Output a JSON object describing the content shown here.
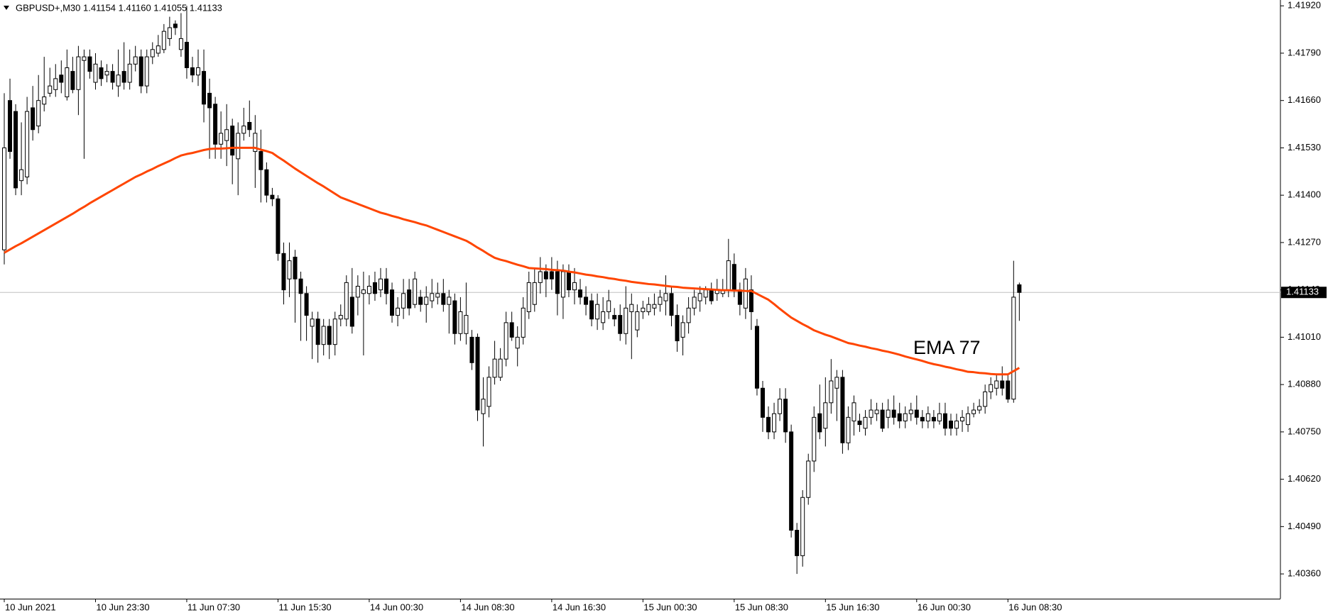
{
  "chart_data": {
    "type": "candlestick",
    "title": "GBPUSD+,M30  1.41154 1.41160 1.41055 1.41133",
    "categories": [
      "10 Jun 2021",
      null,
      null,
      null,
      null,
      null,
      null,
      null,
      null,
      null,
      null,
      null,
      null,
      null,
      null,
      null,
      "10 Jun 23:30",
      null,
      null,
      null,
      null,
      null,
      null,
      null,
      null,
      null,
      null,
      null,
      null,
      null,
      null,
      null,
      "11 Jun 07:30",
      null,
      null,
      null,
      null,
      null,
      null,
      null,
      null,
      null,
      null,
      null,
      null,
      null,
      null,
      null,
      "11 Jun 15:30",
      null,
      null,
      null,
      null,
      null,
      null,
      null,
      null,
      null,
      null,
      null,
      null,
      null,
      null,
      null,
      "14 Jun 00:30",
      null,
      null,
      null,
      null,
      null,
      null,
      null,
      null,
      null,
      null,
      null,
      null,
      null,
      null,
      null,
      "14 Jun 08:30",
      null,
      null,
      null,
      null,
      null,
      null,
      null,
      null,
      null,
      null,
      null,
      null,
      null,
      null,
      null,
      "14 Jun 16:30",
      null,
      null,
      null,
      null,
      null,
      null,
      null,
      null,
      null,
      null,
      null,
      null,
      null,
      null,
      null,
      "15 Jun 00:30",
      null,
      null,
      null,
      null,
      null,
      null,
      null,
      null,
      null,
      null,
      null,
      null,
      null,
      null,
      null,
      "15 Jun 08:30",
      null,
      null,
      null,
      null,
      null,
      null,
      null,
      null,
      null,
      null,
      null,
      null,
      null,
      null,
      null,
      "15 Jun 16:30",
      null,
      null,
      null,
      null,
      null,
      null,
      null,
      null,
      null,
      null,
      null,
      null,
      null,
      null,
      null,
      "16 Jun 00:30",
      null,
      null,
      null,
      null,
      null,
      null,
      null,
      null,
      null,
      null,
      null,
      null,
      null,
      null,
      null,
      "16 Jun 08:30",
      null,
      null
    ],
    "open": [
      1.4125,
      1.4166,
      1.4163,
      1.4144,
      1.4145,
      1.4164,
      1.4159,
      1.4165,
      1.4168,
      1.4169,
      1.4173,
      1.4167,
      1.4174,
      1.4169,
      1.4177,
      1.4178,
      1.4171,
      1.4175,
      1.4173,
      1.4174,
      1.417,
      1.4174,
      1.4171,
      1.4176,
      1.4178,
      1.417,
      1.4178,
      1.4179,
      1.418,
      1.4183,
      1.4187,
      1.418,
      1.4182,
      1.4175,
      1.4173,
      1.4174,
      1.4168,
      1.4165,
      1.4154,
      1.4155,
      1.4159,
      1.415,
      1.4157,
      1.416,
      1.4152,
      1.4152,
      1.4147,
      1.414,
      1.4139,
      1.4124,
      1.4117,
      1.4123,
      1.4117,
      1.4113,
      1.4104,
      1.4106,
      1.4099,
      1.4104,
      1.4099,
      1.4106,
      1.4106,
      1.4112,
      1.4112,
      1.4113,
      1.4113,
      1.4116,
      1.4114,
      1.4117,
      1.4114,
      1.4107,
      1.4109,
      1.4114,
      1.411,
      1.4112,
      1.411,
      1.4111,
      1.4112,
      1.4113,
      1.411,
      1.4111,
      1.4102,
      1.4102,
      1.4101,
      1.4101,
      1.408,
      1.4082,
      1.409,
      1.409,
      1.4095,
      1.4105,
      1.4098,
      1.4101,
      1.4108,
      1.411,
      1.4116,
      1.4119,
      1.4119,
      1.4119,
      1.4112,
      1.4119,
      1.4114,
      1.4114,
      1.4112,
      1.4111,
      1.4106,
      1.4105,
      1.4108,
      1.4107,
      1.4107,
      1.4102,
      1.4108,
      1.4103,
      1.4108,
      1.4108,
      1.4109,
      1.411,
      1.4111,
      1.4113,
      1.4107,
      1.4101,
      1.4105,
      1.4109,
      1.4111,
      1.4112,
      1.4114,
      1.4113,
      1.4113,
      1.4114,
      1.4121,
      1.4114,
      1.4109,
      1.4114,
      1.4104,
      1.4087,
      1.4079,
      1.4075,
      1.408,
      1.4084,
      1.4075,
      1.4048,
      1.4041,
      1.4057,
      1.4067,
      1.408,
      1.4076,
      1.4083,
      1.4087,
      1.409,
      1.4072,
      1.4078,
      1.4078,
      1.4076,
      1.4079,
      1.408,
      1.4081,
      1.4079,
      1.4081,
      1.408,
      1.4078,
      1.408,
      1.4081,
      1.4079,
      1.4078,
      1.4079,
      1.4078,
      1.408,
      1.4078,
      1.4076,
      1.4078,
      1.4077,
      1.408,
      1.4081,
      1.4082,
      1.4086,
      1.4087,
      1.4089,
      1.4089,
      1.4084,
      1.41154
    ],
    "high": [
      1.4168,
      1.4172,
      1.4165,
      1.416,
      1.4167,
      1.417,
      1.4173,
      1.4178,
      1.4175,
      1.4176,
      1.4177,
      1.418,
      1.4178,
      1.4181,
      1.418,
      1.418,
      1.4179,
      1.4177,
      1.4176,
      1.4176,
      1.418,
      1.4182,
      1.418,
      1.4181,
      1.418,
      1.418,
      1.4182,
      1.4184,
      1.4187,
      1.4189,
      1.4188,
      1.419,
      1.4192,
      1.4178,
      1.418,
      1.418,
      1.4172,
      1.4167,
      1.4163,
      1.4165,
      1.4161,
      1.416,
      1.4164,
      1.4166,
      1.4162,
      1.4158,
      1.4149,
      1.4142,
      1.414,
      1.4127,
      1.4127,
      1.4125,
      1.4119,
      1.4115,
      1.4108,
      1.4108,
      1.4106,
      1.4106,
      1.4108,
      1.411,
      1.4118,
      1.412,
      1.4118,
      1.4119,
      1.4118,
      1.4119,
      1.412,
      1.412,
      1.4116,
      1.4112,
      1.4117,
      1.4117,
      1.4119,
      1.4114,
      1.4115,
      1.4117,
      1.4116,
      1.4117,
      1.4114,
      1.4113,
      1.4112,
      1.4116,
      1.4103,
      1.4102,
      1.409,
      1.4093,
      1.41,
      1.4098,
      1.4108,
      1.4108,
      1.4104,
      1.4112,
      1.4119,
      1.412,
      1.4123,
      1.4121,
      1.4123,
      1.4122,
      1.4121,
      1.4121,
      1.412,
      1.4117,
      1.4115,
      1.4113,
      1.4113,
      1.4112,
      1.4114,
      1.4109,
      1.411,
      1.4115,
      1.4113,
      1.411,
      1.4111,
      1.4112,
      1.4113,
      1.4114,
      1.4118,
      1.4115,
      1.411,
      1.4107,
      1.4112,
      1.4114,
      1.4115,
      1.4115,
      1.4116,
      1.4117,
      1.4117,
      1.4128,
      1.4124,
      1.4116,
      1.412,
      1.4118,
      1.4106,
      1.4089,
      1.4082,
      1.4083,
      1.4087,
      1.4087,
      1.4077,
      1.405,
      1.4059,
      1.4069,
      1.4082,
      1.4088,
      1.409,
      1.4095,
      1.4092,
      1.4092,
      1.4082,
      1.4085,
      1.408,
      1.4081,
      1.4084,
      1.4083,
      1.4083,
      1.4084,
      1.4085,
      1.4083,
      1.4082,
      1.4083,
      1.4085,
      1.4081,
      1.4082,
      1.4081,
      1.4083,
      1.4083,
      1.408,
      1.408,
      1.4081,
      1.4082,
      1.4083,
      1.4084,
      1.4088,
      1.409,
      1.4091,
      1.4093,
      1.4091,
      1.4122,
      1.4116
    ],
    "low": [
      1.4121,
      1.415,
      1.414,
      1.414,
      1.4143,
      1.4155,
      1.4157,
      1.4163,
      1.4167,
      1.4167,
      1.4168,
      1.4166,
      1.4168,
      1.4162,
      1.415,
      1.4172,
      1.4169,
      1.417,
      1.4171,
      1.4169,
      1.4167,
      1.4169,
      1.4169,
      1.4174,
      1.4168,
      1.4168,
      1.4176,
      1.4178,
      1.4179,
      1.4181,
      1.4184,
      1.4178,
      1.4172,
      1.4171,
      1.417,
      1.416,
      1.415,
      1.415,
      1.415,
      1.4148,
      1.4143,
      1.414,
      1.4155,
      1.4156,
      1.4142,
      1.4138,
      1.4138,
      1.4137,
      1.4122,
      1.411,
      1.4112,
      1.4105,
      1.41,
      1.41,
      1.4095,
      1.4094,
      1.4096,
      1.4095,
      1.4096,
      1.4104,
      1.4104,
      1.4102,
      1.4107,
      1.4096,
      1.411,
      1.4111,
      1.4112,
      1.411,
      1.4105,
      1.4104,
      1.4106,
      1.4107,
      1.4109,
      1.4108,
      1.4105,
      1.4109,
      1.411,
      1.4108,
      1.4102,
      1.4099,
      1.41,
      1.4099,
      1.4092,
      1.4078,
      1.4071,
      1.4079,
      1.4088,
      1.4089,
      1.4093,
      1.41,
      1.4093,
      1.4099,
      1.4106,
      1.4108,
      1.4113,
      1.4112,
      1.4114,
      1.4107,
      1.4106,
      1.4112,
      1.411,
      1.411,
      1.4107,
      1.4104,
      1.4103,
      1.4103,
      1.4106,
      1.4104,
      1.41,
      1.4099,
      1.4095,
      1.4101,
      1.4106,
      1.4107,
      1.4107,
      1.4108,
      1.4107,
      1.4104,
      1.4097,
      1.4096,
      1.4102,
      1.4107,
      1.4108,
      1.411,
      1.411,
      1.4111,
      1.4112,
      1.4112,
      1.4112,
      1.4107,
      1.4106,
      1.4103,
      1.4085,
      1.4075,
      1.4073,
      1.4073,
      1.4078,
      1.4072,
      1.4046,
      1.4036,
      1.4038,
      1.4055,
      1.4064,
      1.4073,
      1.4071,
      1.408,
      1.4078,
      1.4069,
      1.407,
      1.4074,
      1.4075,
      1.4074,
      1.4077,
      1.4078,
      1.4075,
      1.4076,
      1.4077,
      1.4076,
      1.4076,
      1.4078,
      1.4077,
      1.4076,
      1.4076,
      1.4076,
      1.4077,
      1.4074,
      1.4074,
      1.4074,
      1.4075,
      1.4075,
      1.4079,
      1.408,
      1.408,
      1.4084,
      1.4085,
      1.4085,
      1.4083,
      1.4083,
      1.41055
    ],
    "close": [
      1.4153,
      1.4152,
      1.4142,
      1.4147,
      1.4163,
      1.4158,
      1.4166,
      1.4167,
      1.417,
      1.4172,
      1.4171,
      1.4175,
      1.4169,
      1.4178,
      1.4178,
      1.4174,
      1.4176,
      1.4172,
      1.4174,
      1.4171,
      1.4173,
      1.4171,
      1.4176,
      1.4178,
      1.417,
      1.4178,
      1.418,
      1.4181,
      1.4185,
      1.4186,
      1.4186,
      1.4183,
      1.4175,
      1.4173,
      1.4175,
      1.4165,
      1.4164,
      1.4154,
      1.4157,
      1.4158,
      1.4151,
      1.4157,
      1.4159,
      1.4158,
      1.4157,
      1.4147,
      1.414,
      1.4139,
      1.4124,
      1.4114,
      1.4122,
      1.4117,
      1.4113,
      1.4107,
      1.4106,
      1.4099,
      1.4104,
      1.4099,
      1.4106,
      1.4107,
      1.4116,
      1.4104,
      1.4115,
      1.4114,
      1.4115,
      1.4113,
      1.4117,
      1.4113,
      1.4107,
      1.4109,
      1.4113,
      1.4109,
      1.4117,
      1.411,
      1.4112,
      1.4113,
      1.4113,
      1.411,
      1.4112,
      1.4102,
      1.4108,
      1.4107,
      1.4094,
      1.4081,
      1.4084,
      1.409,
      1.4095,
      1.4095,
      1.4105,
      1.4101,
      1.4101,
      1.4109,
      1.4116,
      1.4116,
      1.4119,
      1.4117,
      1.4117,
      1.4113,
      1.4119,
      1.4114,
      1.4116,
      1.4112,
      1.411,
      1.4106,
      1.411,
      1.4108,
      1.4111,
      1.4106,
      1.4102,
      1.4109,
      1.411,
      1.4108,
      1.4109,
      1.411,
      1.411,
      1.4112,
      1.4113,
      1.4107,
      1.41,
      1.4105,
      1.4109,
      1.4112,
      1.4113,
      1.4114,
      1.4111,
      1.4114,
      1.4114,
      1.4122,
      1.4114,
      1.411,
      1.4117,
      1.4108,
      1.4087,
      1.4079,
      1.4075,
      1.408,
      1.4084,
      1.4075,
      1.4048,
      1.4041,
      1.4057,
      1.4067,
      1.4079,
      1.4075,
      1.4083,
      1.4089,
      1.409,
      1.4072,
      1.4079,
      1.4083,
      1.4077,
      1.4079,
      1.4081,
      1.4081,
      1.4076,
      1.4081,
      1.4079,
      1.4078,
      1.408,
      1.4081,
      1.4079,
      1.4078,
      1.408,
      1.4078,
      1.408,
      1.4076,
      1.4076,
      1.4078,
      1.4079,
      1.408,
      1.4081,
      1.4082,
      1.4086,
      1.4088,
      1.4089,
      1.4087,
      1.4084,
      1.4112,
      1.41133
    ],
    "ema": {
      "name": "EMA 77",
      "color": "#ff4500",
      "values": [
        1.41242,
        1.41251,
        1.4126,
        1.41268,
        1.41277,
        1.41286,
        1.41295,
        1.41304,
        1.41313,
        1.41322,
        1.41331,
        1.4134,
        1.41349,
        1.41359,
        1.41368,
        1.41378,
        1.41387,
        1.41396,
        1.41405,
        1.41414,
        1.41423,
        1.41432,
        1.41441,
        1.4145,
        1.41457,
        1.41465,
        1.41472,
        1.4148,
        1.41487,
        1.41494,
        1.41502,
        1.41509,
        1.41513,
        1.41516,
        1.4152,
        1.41524,
        1.41527,
        1.41528,
        1.41528,
        1.41529,
        1.4153,
        1.4153,
        1.4153,
        1.4153,
        1.4153,
        1.41525,
        1.41521,
        1.41516,
        1.41505,
        1.41495,
        1.41484,
        1.41473,
        1.41463,
        1.41453,
        1.41443,
        1.41433,
        1.41424,
        1.41414,
        1.41404,
        1.41394,
        1.41388,
        1.41382,
        1.41376,
        1.4137,
        1.41364,
        1.41358,
        1.41352,
        1.41348,
        1.41343,
        1.41339,
        1.41334,
        1.4133,
        1.41326,
        1.41321,
        1.41317,
        1.41311,
        1.41305,
        1.41299,
        1.41293,
        1.41287,
        1.41281,
        1.41275,
        1.41266,
        1.41256,
        1.41247,
        1.41237,
        1.41228,
        1.41223,
        1.41219,
        1.41214,
        1.41209,
        1.41205,
        1.412,
        1.41199,
        1.41198,
        1.41197,
        1.41195,
        1.41194,
        1.41193,
        1.4119,
        1.41188,
        1.41185,
        1.41182,
        1.4118,
        1.41177,
        1.41175,
        1.41172,
        1.4117,
        1.41167,
        1.41165,
        1.41162,
        1.4116,
        1.41158,
        1.41156,
        1.41155,
        1.41153,
        1.41151,
        1.41149,
        1.41148,
        1.41146,
        1.41145,
        1.41144,
        1.41143,
        1.41142,
        1.41141,
        1.4114,
        1.41139,
        1.41139,
        1.41138,
        1.41138,
        1.41137,
        1.41137,
        1.41129,
        1.41121,
        1.41113,
        1.41101,
        1.41088,
        1.41076,
        1.41064,
        1.41055,
        1.41046,
        1.41038,
        1.41029,
        1.41023,
        1.41017,
        1.41012,
        1.41006,
        1.41,
        1.40994,
        1.40991,
        1.40987,
        1.40984,
        1.4098,
        1.40977,
        1.40973,
        1.4097,
        1.40966,
        1.40962,
        1.40957,
        1.40953,
        1.40949,
        1.40945,
        1.4094,
        1.40936,
        1.40933,
        1.40929,
        1.40926,
        1.40922,
        1.40919,
        1.40915,
        1.40914,
        1.40912,
        1.40911,
        1.40909,
        1.40908,
        1.40908,
        1.40908,
        1.40917,
        1.40926
      ]
    },
    "current_price": {
      "value": 1.41133,
      "label": "1.41133"
    },
    "ylim": [
      1.40292,
      1.41936
    ],
    "yticks": [
      {
        "value": 1.4192,
        "label": "1.41920"
      },
      {
        "value": 1.4179,
        "label": "1.41790"
      },
      {
        "value": 1.4166,
        "label": "1.41660"
      },
      {
        "value": 1.4153,
        "label": "1.41530"
      },
      {
        "value": 1.414,
        "label": "1.41400"
      },
      {
        "value": 1.4127,
        "label": "1.41270"
      },
      {
        "value": 1.4114,
        "label": "1.41140"
      },
      {
        "value": 1.4101,
        "label": "1.41010"
      },
      {
        "value": 1.4088,
        "label": "1.40880"
      },
      {
        "value": 1.4075,
        "label": "1.40750"
      },
      {
        "value": 1.4062,
        "label": "1.40620"
      },
      {
        "value": 1.4049,
        "label": "1.40490"
      },
      {
        "value": 1.4036,
        "label": "1.40360"
      }
    ],
    "bull_color": "#ffffff",
    "bear_color": "#000000",
    "grid": false
  }
}
